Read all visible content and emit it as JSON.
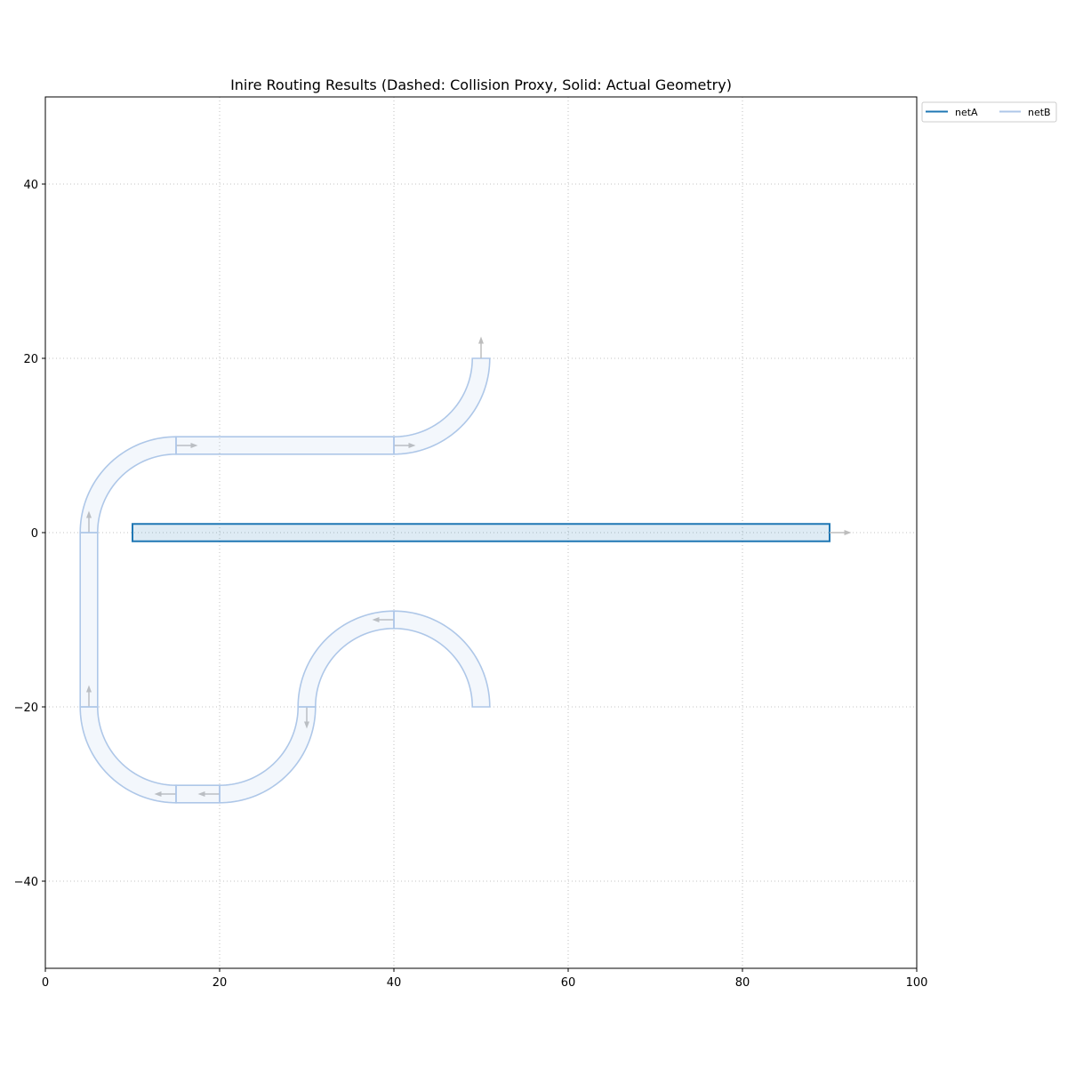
{
  "chart_data": {
    "type": "line",
    "title": "Inire Routing Results (Dashed: Collision Proxy, Solid: Actual Geometry)",
    "xlim": [
      0,
      100
    ],
    "ylim": [
      -50,
      50
    ],
    "xticks": [
      0,
      20,
      40,
      60,
      80,
      100
    ],
    "yticks": [
      -40,
      -20,
      0,
      20,
      40
    ],
    "grid": true,
    "legend_placement": "outside-top-right",
    "legend": [
      "netA",
      "netB"
    ],
    "wire_width": 2,
    "arrow_length": 2.5,
    "series": [
      {
        "name": "netA",
        "color": "#1f77b4",
        "segments": [
          {
            "type": "straight",
            "from": [
              10,
              0
            ],
            "to": [
              90,
              0
            ]
          }
        ]
      },
      {
        "name": "netB",
        "color": "#aec7e8",
        "segments": [
          {
            "type": "arc",
            "center": [
              40,
              -20
            ],
            "radius": 10,
            "start_deg": 0,
            "end_deg": 90
          },
          {
            "type": "arc",
            "center": [
              40,
              -20
            ],
            "radius": 10,
            "start_deg": 90,
            "end_deg": 180
          },
          {
            "type": "arc",
            "center": [
              20,
              -20
            ],
            "radius": 10,
            "start_deg": 0,
            "end_deg": -90
          },
          {
            "type": "straight",
            "from": [
              20,
              -30
            ],
            "to": [
              15,
              -30
            ]
          },
          {
            "type": "arc",
            "center": [
              15,
              -20
            ],
            "radius": 10,
            "start_deg": -90,
            "end_deg": -180
          },
          {
            "type": "straight",
            "from": [
              5,
              -20
            ],
            "to": [
              5,
              0
            ]
          },
          {
            "type": "arc",
            "center": [
              15,
              0
            ],
            "radius": 10,
            "start_deg": 180,
            "end_deg": 90
          },
          {
            "type": "straight",
            "from": [
              15,
              10
            ],
            "to": [
              40,
              10
            ]
          },
          {
            "type": "arc",
            "center": [
              40,
              20
            ],
            "radius": 10,
            "start_deg": -90,
            "end_deg": 0
          }
        ]
      }
    ]
  }
}
